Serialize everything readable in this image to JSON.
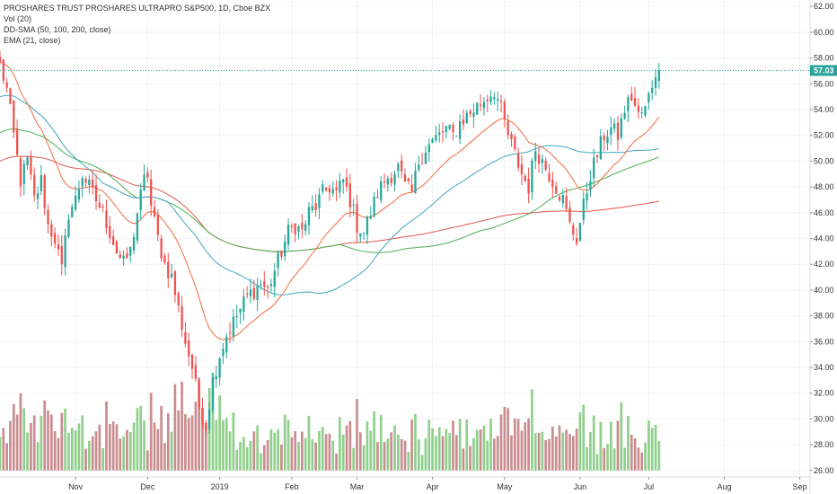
{
  "legend": {
    "title": "PROSHARES TRUST PROSHARES ULTRAPRO S&P500, 1D, Cboe BZX",
    "vol": "Vol (20)",
    "sma": "DD-SMA (50, 100, 200, close)",
    "ema": "EMA (21, close)"
  },
  "colors": {
    "up": "#26a69a",
    "down": "#ef5350",
    "vol_up": "#8fcf8b",
    "vol_down": "#c98c8f",
    "sma50": "#3fa7c0",
    "sma100": "#4caf50",
    "sma200": "#e0574b",
    "ema21": "#f26a3c",
    "last_price": "#26a69a",
    "grid": "#f0f3f5"
  },
  "chart_data": {
    "type": "candlestick",
    "y_axis": {
      "range": [
        25.5,
        62.5
      ],
      "ticks": [
        "26.00",
        "28.00",
        "30.00",
        "32.00",
        "34.00",
        "36.00",
        "38.00",
        "40.00",
        "42.00",
        "44.00",
        "46.00",
        "48.00",
        "50.00",
        "52.00",
        "54.00",
        "56.00",
        "58.00",
        "60.00",
        "62.00"
      ]
    },
    "x_axis": {
      "labels": [
        {
          "text": "Nov",
          "day": 22
        },
        {
          "text": "Dec",
          "day": 43
        },
        {
          "text": "2019",
          "day": 64
        },
        {
          "text": "Feb",
          "day": 85
        },
        {
          "text": "Mar",
          "day": 104
        },
        {
          "text": "Apr",
          "day": 126
        },
        {
          "text": "May",
          "day": 147
        },
        {
          "text": "Jun",
          "day": 169
        },
        {
          "text": "Jul",
          "day": 189
        },
        {
          "text": "Aug",
          "day": 211
        },
        {
          "text": "Sep",
          "day": 233
        }
      ],
      "total_days": 236
    },
    "last_price": "57.03",
    "close_path": [
      [
        0,
        57.5
      ],
      [
        2,
        55.5
      ],
      [
        4,
        52.0
      ],
      [
        6,
        48.5
      ],
      [
        8,
        50.0
      ],
      [
        10,
        47.0
      ],
      [
        12,
        48.5
      ],
      [
        14,
        45.0
      ],
      [
        16,
        44.0
      ],
      [
        18,
        41.5
      ],
      [
        20,
        46.0
      ],
      [
        22,
        47.0
      ],
      [
        24,
        49.0
      ],
      [
        26,
        48.0
      ],
      [
        28,
        47.0
      ],
      [
        30,
        46.0
      ],
      [
        32,
        44.5
      ],
      [
        34,
        43.0
      ],
      [
        36,
        42.0
      ],
      [
        38,
        43.0
      ],
      [
        40,
        46.0
      ],
      [
        42,
        48.5
      ],
      [
        43,
        49.0
      ],
      [
        44,
        46.5
      ],
      [
        46,
        44.0
      ],
      [
        48,
        42.0
      ],
      [
        50,
        41.0
      ],
      [
        52,
        38.5
      ],
      [
        54,
        36.0
      ],
      [
        56,
        34.0
      ],
      [
        58,
        31.0
      ],
      [
        60,
        29.5
      ],
      [
        62,
        33.0
      ],
      [
        64,
        35.0
      ],
      [
        66,
        36.5
      ],
      [
        68,
        37.5
      ],
      [
        70,
        38.5
      ],
      [
        72,
        39.5
      ],
      [
        74,
        40.0
      ],
      [
        76,
        40.5
      ],
      [
        78,
        40.0
      ],
      [
        80,
        41.5
      ],
      [
        82,
        43.0
      ],
      [
        84,
        44.5
      ],
      [
        86,
        45.0
      ],
      [
        88,
        44.5
      ],
      [
        90,
        46.0
      ],
      [
        92,
        46.5
      ],
      [
        94,
        47.5
      ],
      [
        96,
        48.0
      ],
      [
        98,
        47.5
      ],
      [
        100,
        48.5
      ],
      [
        102,
        47.0
      ],
      [
        104,
        45.0
      ],
      [
        106,
        44.5
      ],
      [
        108,
        46.0
      ],
      [
        110,
        47.5
      ],
      [
        112,
        48.5
      ],
      [
        114,
        49.0
      ],
      [
        116,
        49.5
      ],
      [
        118,
        48.0
      ],
      [
        120,
        47.5
      ],
      [
        122,
        50.0
      ],
      [
        124,
        51.0
      ],
      [
        126,
        51.5
      ],
      [
        128,
        52.0
      ],
      [
        130,
        52.5
      ],
      [
        132,
        52.0
      ],
      [
        134,
        53.0
      ],
      [
        136,
        53.5
      ],
      [
        138,
        54.0
      ],
      [
        140,
        54.5
      ],
      [
        142,
        55.0
      ],
      [
        144,
        55.5
      ],
      [
        146,
        54.0
      ],
      [
        147,
        53.0
      ],
      [
        148,
        52.0
      ],
      [
        150,
        50.5
      ],
      [
        152,
        49.0
      ],
      [
        154,
        48.0
      ],
      [
        156,
        51.0
      ],
      [
        158,
        50.0
      ],
      [
        160,
        49.0
      ],
      [
        162,
        48.0
      ],
      [
        164,
        47.0
      ],
      [
        166,
        45.0
      ],
      [
        168,
        44.0
      ],
      [
        170,
        46.5
      ],
      [
        172,
        49.0
      ],
      [
        174,
        50.5
      ],
      [
        176,
        52.0
      ],
      [
        178,
        52.5
      ],
      [
        180,
        52.0
      ],
      [
        182,
        54.0
      ],
      [
        184,
        55.0
      ],
      [
        186,
        53.5
      ],
      [
        188,
        54.0
      ],
      [
        190,
        56.0
      ],
      [
        191,
        57.0
      ],
      [
        192,
        57.03
      ]
    ],
    "volume_range": [
      0,
      10
    ],
    "volume_base_y": 26.0,
    "volume_top_y": 35.0
  }
}
